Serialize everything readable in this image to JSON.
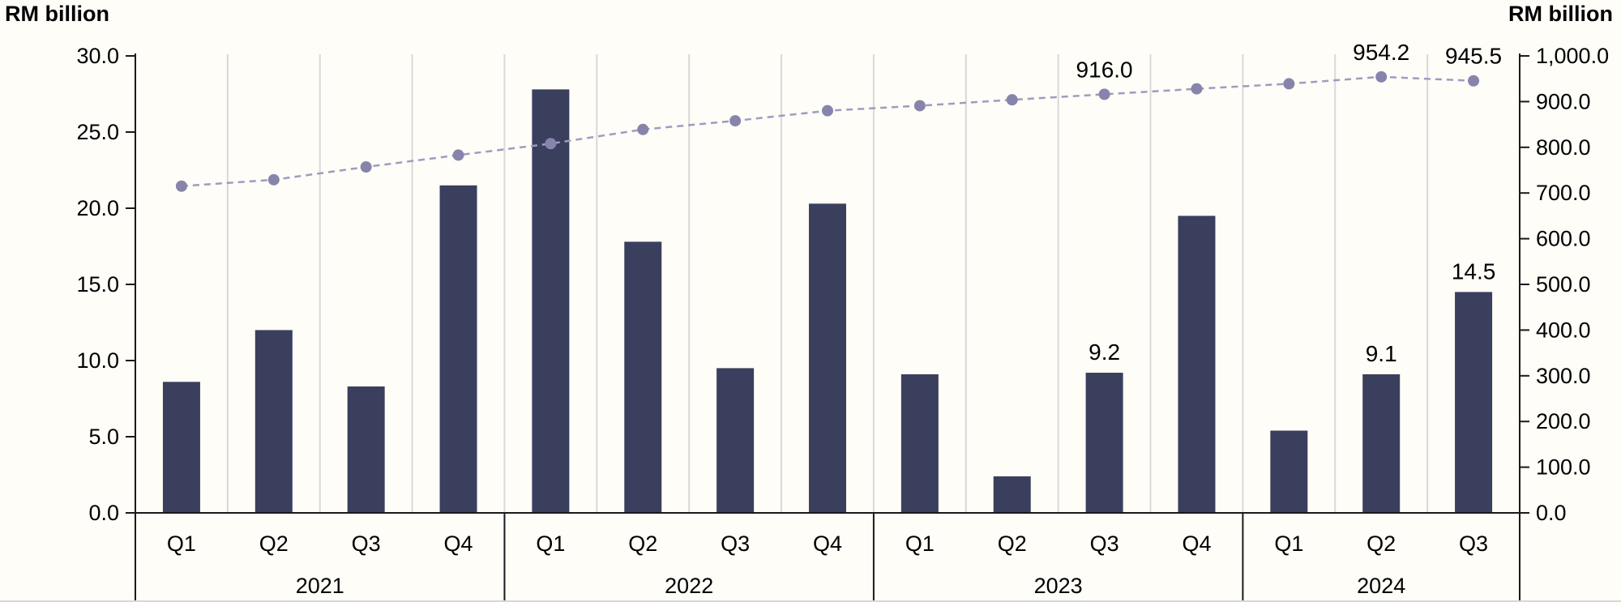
{
  "chart_data": {
    "type": "bar",
    "secondary_type": "line",
    "title": "",
    "groups": [
      {
        "year": "2021",
        "quarters": [
          "Q1",
          "Q2",
          "Q3",
          "Q4"
        ]
      },
      {
        "year": "2022",
        "quarters": [
          "Q1",
          "Q2",
          "Q3",
          "Q4"
        ]
      },
      {
        "year": "2023",
        "quarters": [
          "Q1",
          "Q2",
          "Q3",
          "Q4"
        ]
      },
      {
        "year": "2024",
        "quarters": [
          "Q1",
          "Q2",
          "Q3"
        ]
      }
    ],
    "bar_values": [
      8.6,
      12.0,
      8.3,
      21.5,
      27.8,
      17.8,
      9.5,
      20.3,
      9.1,
      2.4,
      9.2,
      19.5,
      5.4,
      9.1,
      14.5
    ],
    "line_values": [
      715,
      729,
      757,
      783,
      808,
      839,
      858,
      880,
      891,
      904,
      916.0,
      928,
      939,
      954.2,
      945.5
    ],
    "bar_point_labels": [
      {
        "index": 10,
        "text": "9.2"
      },
      {
        "index": 13,
        "text": "9.1"
      },
      {
        "index": 14,
        "text": "14.5"
      }
    ],
    "line_point_labels": [
      {
        "index": 10,
        "text": "916.0"
      },
      {
        "index": 13,
        "text": "954.2"
      },
      {
        "index": 14,
        "text": "945.5"
      }
    ],
    "left_axis": {
      "title": "RM billion",
      "min": 0,
      "max": 30,
      "tick_step": 5,
      "tick_labels": [
        "0.0",
        "5.0",
        "10.0",
        "15.0",
        "20.0",
        "25.0",
        "30.0"
      ]
    },
    "right_axis": {
      "title": "RM billion",
      "min": 0,
      "max": 1000,
      "tick_step": 100,
      "tick_labels": [
        "0.0",
        "100.0",
        "200.0",
        "300.0",
        "400.0",
        "500.0",
        "600.0",
        "700.0",
        "800.0",
        "900.0",
        "1,000.0"
      ]
    },
    "legend": "none",
    "grid": "vertical-quarter-separators",
    "colors": {
      "bar": "#3a3f5d",
      "line": "#9e9cbe",
      "marker": "#8784ac",
      "gridline": "#d9d9d9",
      "axis": "#1a1a1a",
      "text": "#000000",
      "background": "#fffdf8"
    }
  }
}
